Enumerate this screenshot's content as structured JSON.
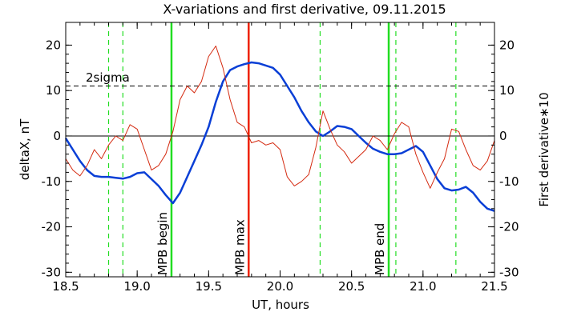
{
  "chart_data": {
    "type": "line",
    "title": "X-variations and first derivative, 09.11.2015",
    "xlabel": "UT, hours",
    "ylabel_left": "deltaX, nT",
    "ylabel_right": "First derivative∗10",
    "xlim": [
      18.5,
      21.5
    ],
    "ylim": [
      -31,
      25
    ],
    "x_ticks": [
      18.5,
      19.0,
      19.5,
      20.0,
      20.5,
      21.0,
      21.5
    ],
    "x_tick_labels": [
      "18.5",
      "19.0",
      "19.5",
      "20.0",
      "20.5",
      "21.0",
      "21.5"
    ],
    "y_ticks": [
      -30,
      -20,
      -10,
      0,
      10,
      20
    ],
    "y_tick_labels": [
      "-30",
      "-20",
      "-10",
      "0",
      "10",
      "20"
    ],
    "grid": false,
    "colors": {
      "deltaX": "#0a3fd6",
      "derivative": "#d42a10",
      "mpb": "#22dd22",
      "max": "#ee2200",
      "axis": "#000000"
    },
    "sigma_line": {
      "y": 11,
      "label": "2sigma"
    },
    "zero_line": 0,
    "series": [
      {
        "points": [
          [
            18.5,
            -0.5
          ],
          [
            18.55,
            -3.0
          ],
          [
            18.6,
            -5.5
          ],
          [
            18.65,
            -7.5
          ],
          [
            18.7,
            -8.8
          ],
          [
            18.75,
            -9.0
          ],
          [
            18.8,
            -9.0
          ],
          [
            18.85,
            -9.2
          ],
          [
            18.9,
            -9.4
          ],
          [
            18.95,
            -9.0
          ],
          [
            19.0,
            -8.2
          ],
          [
            19.05,
            -8.0
          ],
          [
            19.1,
            -9.5
          ],
          [
            19.15,
            -11.0
          ],
          [
            19.2,
            -13.0
          ],
          [
            19.25,
            -14.8
          ],
          [
            19.3,
            -12.5
          ],
          [
            19.35,
            -9.0
          ],
          [
            19.4,
            -5.5
          ],
          [
            19.45,
            -2.0
          ],
          [
            19.5,
            2.0
          ],
          [
            19.55,
            7.5
          ],
          [
            19.6,
            12.0
          ],
          [
            19.65,
            14.5
          ],
          [
            19.7,
            15.3
          ],
          [
            19.75,
            15.8
          ],
          [
            19.8,
            16.2
          ],
          [
            19.85,
            16.0
          ],
          [
            19.9,
            15.5
          ],
          [
            19.95,
            15.0
          ],
          [
            20.0,
            13.5
          ],
          [
            20.05,
            11.0
          ],
          [
            20.1,
            8.5
          ],
          [
            20.15,
            5.5
          ],
          [
            20.2,
            3.0
          ],
          [
            20.25,
            1.0
          ],
          [
            20.3,
            0.0
          ],
          [
            20.35,
            1.0
          ],
          [
            20.4,
            2.2
          ],
          [
            20.45,
            2.0
          ],
          [
            20.5,
            1.5
          ],
          [
            20.55,
            0.0
          ],
          [
            20.6,
            -1.5
          ],
          [
            20.65,
            -2.8
          ],
          [
            20.7,
            -3.5
          ],
          [
            20.75,
            -4.0
          ],
          [
            20.8,
            -4.0
          ],
          [
            20.85,
            -3.8
          ],
          [
            20.9,
            -3.0
          ],
          [
            20.95,
            -2.2
          ],
          [
            21.0,
            -3.5
          ],
          [
            21.05,
            -6.5
          ],
          [
            21.1,
            -9.5
          ],
          [
            21.15,
            -11.5
          ],
          [
            21.2,
            -12.0
          ],
          [
            21.25,
            -11.8
          ],
          [
            21.3,
            -11.2
          ],
          [
            21.35,
            -12.5
          ],
          [
            21.4,
            -14.5
          ],
          [
            21.45,
            -16.0
          ],
          [
            21.5,
            -16.5
          ]
        ]
      },
      {
        "points": [
          [
            18.5,
            -5.0
          ],
          [
            18.55,
            -7.5
          ],
          [
            18.6,
            -8.8
          ],
          [
            18.65,
            -6.5
          ],
          [
            18.7,
            -3.0
          ],
          [
            18.75,
            -5.0
          ],
          [
            18.8,
            -2.0
          ],
          [
            18.85,
            0.0
          ],
          [
            18.9,
            -1.0
          ],
          [
            18.95,
            2.5
          ],
          [
            19.0,
            1.5
          ],
          [
            19.05,
            -3.0
          ],
          [
            19.1,
            -7.5
          ],
          [
            19.15,
            -6.5
          ],
          [
            19.2,
            -4.0
          ],
          [
            19.25,
            1.0
          ],
          [
            19.3,
            8.0
          ],
          [
            19.35,
            11.0
          ],
          [
            19.4,
            9.5
          ],
          [
            19.45,
            12.0
          ],
          [
            19.5,
            17.5
          ],
          [
            19.55,
            19.8
          ],
          [
            19.6,
            15.0
          ],
          [
            19.65,
            8.0
          ],
          [
            19.7,
            3.0
          ],
          [
            19.75,
            2.0
          ],
          [
            19.8,
            -1.5
          ],
          [
            19.85,
            -1.0
          ],
          [
            19.9,
            -2.0
          ],
          [
            19.95,
            -1.5
          ],
          [
            20.0,
            -3.0
          ],
          [
            20.05,
            -9.0
          ],
          [
            20.1,
            -11.0
          ],
          [
            20.15,
            -10.0
          ],
          [
            20.2,
            -8.5
          ],
          [
            20.25,
            -2.5
          ],
          [
            20.3,
            5.5
          ],
          [
            20.35,
            1.5
          ],
          [
            20.4,
            -2.0
          ],
          [
            20.45,
            -3.5
          ],
          [
            20.5,
            -6.0
          ],
          [
            20.55,
            -4.5
          ],
          [
            20.6,
            -3.0
          ],
          [
            20.65,
            0.0
          ],
          [
            20.7,
            -1.0
          ],
          [
            20.75,
            -3.0
          ],
          [
            20.8,
            0.5
          ],
          [
            20.85,
            3.0
          ],
          [
            20.9,
            2.0
          ],
          [
            20.95,
            -4.0
          ],
          [
            21.0,
            -8.0
          ],
          [
            21.05,
            -11.5
          ],
          [
            21.1,
            -8.0
          ],
          [
            21.15,
            -5.0
          ],
          [
            21.2,
            1.5
          ],
          [
            21.25,
            1.0
          ],
          [
            21.3,
            -3.0
          ],
          [
            21.35,
            -6.5
          ],
          [
            21.4,
            -7.5
          ],
          [
            21.45,
            -5.5
          ],
          [
            21.5,
            -1.0
          ]
        ]
      }
    ],
    "markers": [
      {
        "x": 18.8,
        "style": "dashed",
        "label": ""
      },
      {
        "x": 18.9,
        "style": "dashed",
        "label": ""
      },
      {
        "x": 19.24,
        "style": "solid",
        "label": "MPB begin"
      },
      {
        "x": 20.28,
        "style": "dashed",
        "label": ""
      },
      {
        "x": 20.76,
        "style": "solid",
        "label": "MPB end"
      },
      {
        "x": 20.81,
        "style": "dashed",
        "label": ""
      },
      {
        "x": 21.23,
        "style": "dashed",
        "label": ""
      }
    ],
    "max_marker": {
      "x": 19.78,
      "label": "MPB max"
    }
  }
}
